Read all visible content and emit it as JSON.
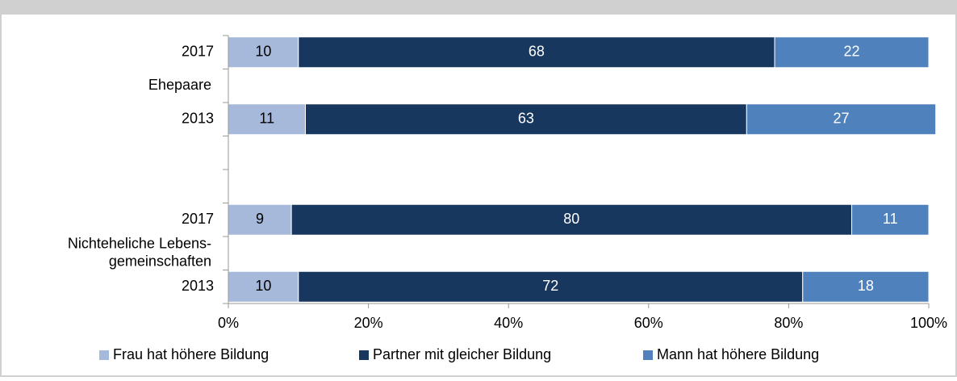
{
  "chart_data": {
    "type": "stacked-barh",
    "categories": [
      "2017",
      "2013",
      "2017",
      "2013"
    ],
    "groups": [
      {
        "label": [
          "Ehepaare"
        ]
      },
      {
        "label": [
          "Nichteheliche Lebens-",
          "gemeinschaften"
        ]
      }
    ],
    "series": [
      {
        "name": "Frau hat höhere Bildung",
        "color": "#a7b9da",
        "label_color": "#000000",
        "values": [
          10,
          11,
          9,
          10
        ]
      },
      {
        "name": "Partner mit gleicher Bildung",
        "color": "#18375f",
        "label_color": "#ffffff",
        "values": [
          68,
          63,
          80,
          72
        ]
      },
      {
        "name": "Mann hat höhere Bildung",
        "color": "#4f81bd",
        "label_color": "#ffffff",
        "values": [
          22,
          27,
          11,
          18
        ]
      }
    ],
    "xlim": [
      0,
      100
    ],
    "xticks": [
      {
        "value": 0,
        "label": "0%"
      },
      {
        "value": 20,
        "label": "20%"
      },
      {
        "value": 40,
        "label": "40%"
      },
      {
        "value": 60,
        "label": "60%"
      },
      {
        "value": 80,
        "label": "80%"
      },
      {
        "value": 100,
        "label": "100%"
      }
    ],
    "legend": "bottom"
  }
}
